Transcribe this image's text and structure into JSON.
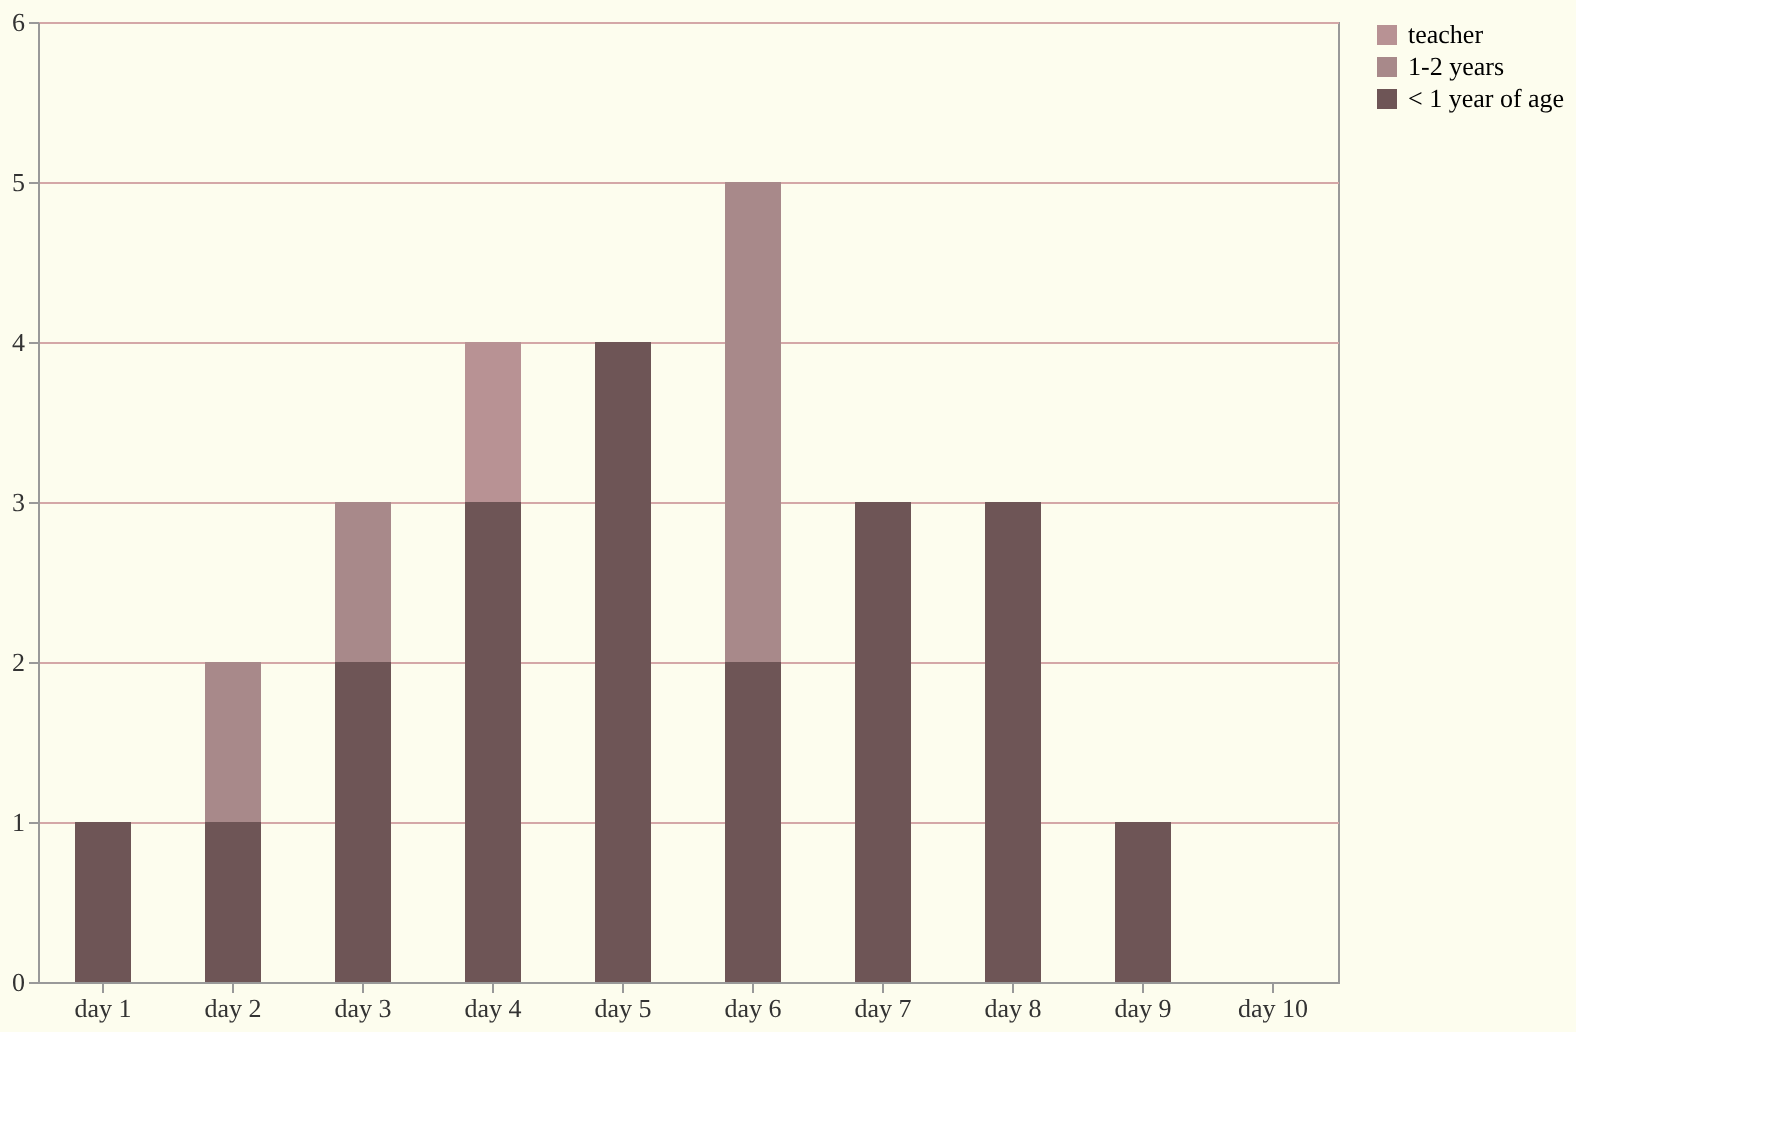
{
  "chart_data": {
    "type": "bar",
    "stacked": true,
    "categories": [
      "day 1",
      "day 2",
      "day 3",
      "day 4",
      "day 5",
      "day 6",
      "day 7",
      "day 8",
      "day 9",
      "day 10"
    ],
    "series": [
      {
        "name": "< 1 year of age",
        "color": "#6e5556",
        "values": [
          1,
          1,
          2,
          3,
          4,
          2,
          3,
          3,
          1,
          0
        ]
      },
      {
        "name": "1-2 years",
        "color": "#a8898a",
        "values": [
          0,
          1,
          1,
          0,
          0,
          3,
          0,
          0,
          0,
          0
        ]
      },
      {
        "name": "teacher",
        "color": "#b89294",
        "values": [
          0,
          0,
          0,
          1,
          0,
          0,
          0,
          0,
          0,
          0
        ]
      }
    ],
    "ylim": [
      0,
      6
    ],
    "yticks": [
      0,
      1,
      2,
      3,
      4,
      5,
      6
    ],
    "grid": "y",
    "legend": "right"
  }
}
